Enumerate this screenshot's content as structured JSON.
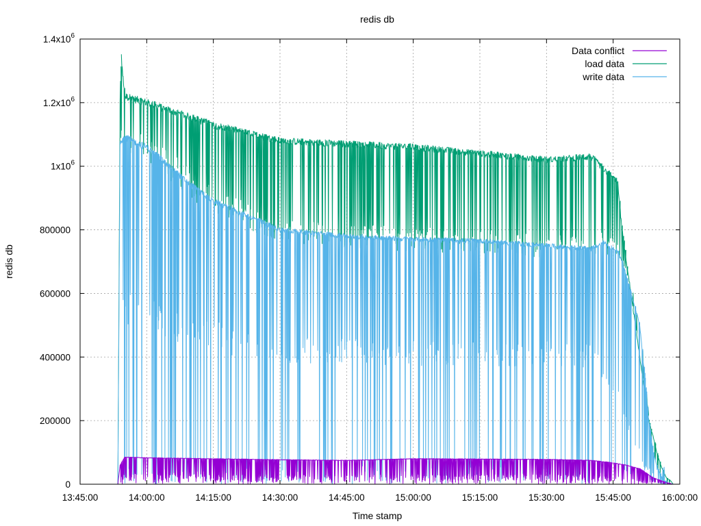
{
  "chart_data": {
    "type": "line",
    "title": "redis db",
    "xlabel": "Time stamp",
    "ylabel": "redis db",
    "x_unit": "time of day",
    "xlim": [
      "13:45:00",
      "16:00:00"
    ],
    "ylim": [
      0,
      1400000
    ],
    "x_ticks": [
      "13:45:00",
      "14:00:00",
      "14:15:00",
      "14:30:00",
      "14:45:00",
      "15:00:00",
      "15:15:00",
      "15:30:00",
      "15:45:00",
      "16:00:00"
    ],
    "y_ticks": [
      {
        "value": 0,
        "base": "0",
        "exp": ""
      },
      {
        "value": 200000,
        "base": "200000",
        "exp": ""
      },
      {
        "value": 400000,
        "base": "400000",
        "exp": ""
      },
      {
        "value": 600000,
        "base": "600000",
        "exp": ""
      },
      {
        "value": 800000,
        "base": "800000",
        "exp": ""
      },
      {
        "value": 1000000,
        "base": "1x10",
        "exp": "6"
      },
      {
        "value": 1200000,
        "base": "1.2x10",
        "exp": "6"
      },
      {
        "value": 1400000,
        "base": "1.4x10",
        "exp": "6"
      }
    ],
    "grid": true,
    "legend_position": "top-right",
    "series": [
      {
        "name": "Data conflict",
        "color": "#9400d3",
        "x": [
          "13:53:30",
          "13:54:00",
          "13:55:00",
          "14:00:00",
          "14:15:00",
          "14:30:00",
          "14:45:00",
          "15:00:00",
          "15:15:00",
          "15:30:00",
          "15:40:00",
          "15:45:00",
          "15:48:00",
          "15:51:00",
          "15:54:00",
          "15:57:00",
          "15:58:30"
        ],
        "values": [
          0,
          60000,
          85000,
          83000,
          80000,
          77000,
          75000,
          80000,
          79000,
          78000,
          75000,
          67000,
          60000,
          48000,
          20000,
          5000,
          0
        ]
      },
      {
        "name": "load data",
        "color": "#009e73",
        "x": [
          "13:53:30",
          "13:54:00",
          "13:54:15",
          "13:55:00",
          "14:00:00",
          "14:15:00",
          "14:30:00",
          "14:45:00",
          "15:00:00",
          "15:15:00",
          "15:30:00",
          "15:40:00",
          "15:43:00",
          "15:46:00",
          "15:47:00",
          "15:48:00",
          "15:49:00",
          "15:50:00",
          "15:51:00",
          "15:52:00",
          "15:53:00",
          "15:54:00",
          "15:55:00",
          "15:56:00",
          "15:57:00",
          "15:58:00",
          "15:58:30"
        ],
        "values": [
          0,
          1200000,
          1350000,
          1220000,
          1200000,
          1130000,
          1080000,
          1070000,
          1060000,
          1040000,
          1020000,
          1030000,
          990000,
          950000,
          800000,
          700000,
          600000,
          500000,
          400000,
          300000,
          200000,
          150000,
          90000,
          50000,
          20000,
          10000,
          0
        ]
      },
      {
        "name": "write data",
        "color": "#56b4e9",
        "x": [
          "13:53:30",
          "13:54:00",
          "13:55:00",
          "14:00:00",
          "14:05:00",
          "14:10:00",
          "14:15:00",
          "14:20:00",
          "14:30:00",
          "14:45:00",
          "15:00:00",
          "15:15:00",
          "15:30:00",
          "15:40:00",
          "15:43:00",
          "15:46:00",
          "15:47:00",
          "15:49:00",
          "15:51:00",
          "15:52:00",
          "15:53:00",
          "15:54:00",
          "15:55:00",
          "15:56:00",
          "15:57:00",
          "15:58:30"
        ],
        "values": [
          0,
          1080000,
          1090000,
          1060000,
          1000000,
          940000,
          890000,
          860000,
          800000,
          780000,
          770000,
          765000,
          750000,
          740000,
          760000,
          730000,
          700000,
          600000,
          500000,
          350000,
          200000,
          100000,
          50000,
          20000,
          5000,
          0
        ],
        "min_trough": [
          0,
          560000,
          550000,
          540000,
          500000,
          480000,
          470000,
          440000,
          420000,
          420000,
          410000,
          410000,
          410000,
          400000,
          350000,
          300000,
          250000,
          150000,
          100000,
          50000,
          20000,
          10000,
          5000,
          2000,
          0,
          0
        ]
      }
    ]
  }
}
